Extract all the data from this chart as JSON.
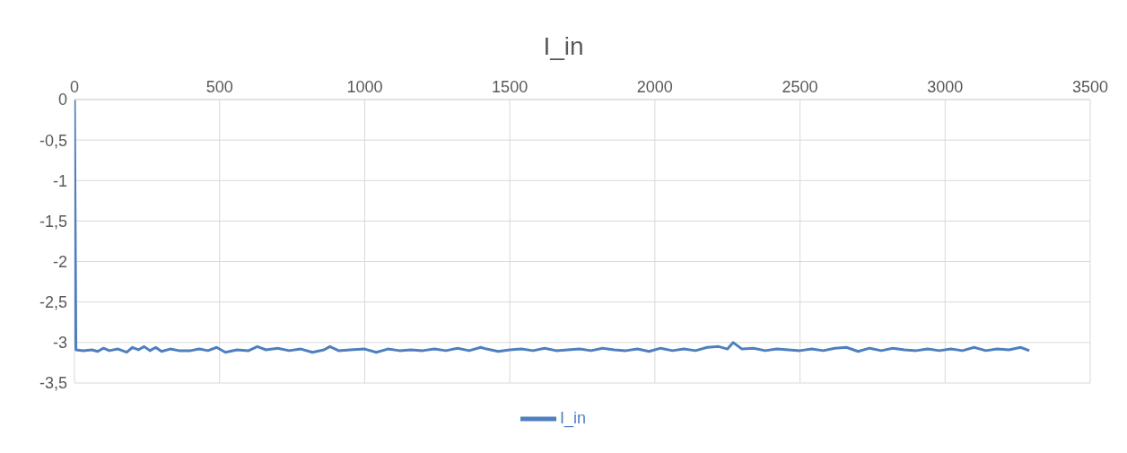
{
  "chart_data": {
    "type": "line",
    "title": "I_in",
    "legend": "bottom",
    "grid": true,
    "marker": "none",
    "line_style": "solid",
    "xlim": [
      0,
      3500
    ],
    "xticks": [
      0,
      500,
      1000,
      1500,
      2000,
      2500,
      3000,
      3500
    ],
    "ylim": [
      -3.5,
      0
    ],
    "yticks": [
      0,
      {
        "value": -0.5,
        "label": "-0,5"
      },
      -1,
      {
        "value": -1.5,
        "label": "-1,5"
      },
      -2,
      {
        "value": -2.5,
        "label": "-2,5"
      },
      -3,
      {
        "value": -3.5,
        "label": "-3,5"
      }
    ],
    "series": [
      {
        "name": "I_in",
        "color": "#4e7fbe",
        "x": [
          0,
          5,
          30,
          60,
          80,
          100,
          120,
          150,
          180,
          200,
          220,
          240,
          260,
          280,
          300,
          330,
          360,
          400,
          430,
          460,
          490,
          520,
          560,
          600,
          630,
          660,
          700,
          740,
          780,
          820,
          860,
          880,
          910,
          950,
          1000,
          1040,
          1080,
          1120,
          1160,
          1200,
          1240,
          1280,
          1320,
          1360,
          1400,
          1420,
          1460,
          1500,
          1540,
          1580,
          1620,
          1660,
          1700,
          1740,
          1780,
          1820,
          1860,
          1900,
          1940,
          1980,
          2020,
          2060,
          2100,
          2140,
          2180,
          2220,
          2250,
          2270,
          2300,
          2340,
          2380,
          2420,
          2460,
          2500,
          2540,
          2580,
          2620,
          2660,
          2700,
          2740,
          2780,
          2820,
          2860,
          2900,
          2940,
          2980,
          3020,
          3060,
          3100,
          3140,
          3180,
          3220,
          3260,
          3290
        ],
        "values": [
          0,
          -3.09,
          -3.1,
          -3.09,
          -3.11,
          -3.07,
          -3.1,
          -3.08,
          -3.12,
          -3.06,
          -3.09,
          -3.05,
          -3.1,
          -3.06,
          -3.11,
          -3.08,
          -3.1,
          -3.1,
          -3.08,
          -3.1,
          -3.06,
          -3.12,
          -3.09,
          -3.1,
          -3.05,
          -3.09,
          -3.07,
          -3.1,
          -3.08,
          -3.12,
          -3.09,
          -3.05,
          -3.1,
          -3.09,
          -3.08,
          -3.12,
          -3.08,
          -3.1,
          -3.09,
          -3.1,
          -3.08,
          -3.1,
          -3.07,
          -3.1,
          -3.06,
          -3.08,
          -3.11,
          -3.09,
          -3.08,
          -3.1,
          -3.07,
          -3.1,
          -3.09,
          -3.08,
          -3.1,
          -3.07,
          -3.09,
          -3.1,
          -3.08,
          -3.11,
          -3.07,
          -3.1,
          -3.08,
          -3.1,
          -3.06,
          -3.05,
          -3.08,
          -3.0,
          -3.08,
          -3.07,
          -3.1,
          -3.08,
          -3.09,
          -3.1,
          -3.08,
          -3.1,
          -3.07,
          -3.06,
          -3.11,
          -3.07,
          -3.1,
          -3.07,
          -3.09,
          -3.1,
          -3.08,
          -3.1,
          -3.08,
          -3.1,
          -3.06,
          -3.1,
          -3.08,
          -3.09,
          -3.06,
          -3.1
        ]
      }
    ]
  }
}
